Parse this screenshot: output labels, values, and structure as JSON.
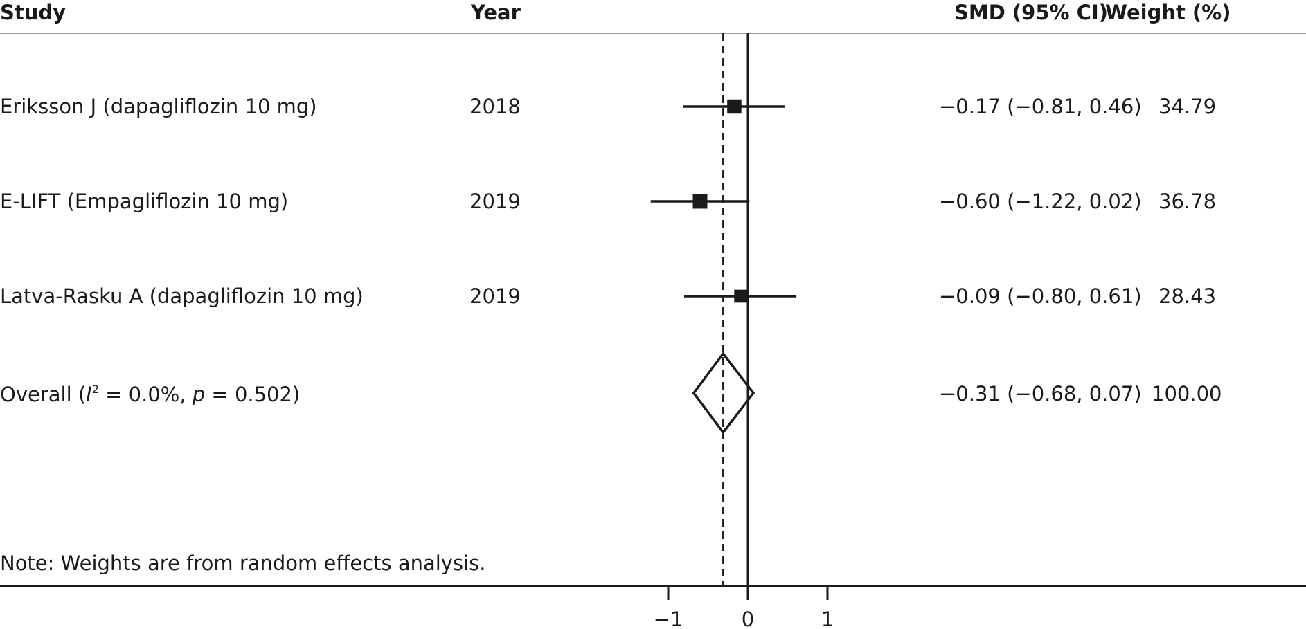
{
  "header": {
    "study": "Study",
    "year": "Year",
    "smd": "SMD (95% CI)",
    "weight": "Weight (%)"
  },
  "rows": [
    {
      "study": "Eriksson J (dapagliflozin 10 mg)",
      "year": "2018",
      "smd_text": "−0.17 (−0.81, 0.46)",
      "weight": "34.79"
    },
    {
      "study": "E-LIFT (Empagliflozin 10 mg)",
      "year": "2019",
      "smd_text": "−0.60 (−1.22, 0.02)",
      "weight": "36.78"
    },
    {
      "study": "Latva-Rasku A (dapagliflozin 10 mg)",
      "year": "2019",
      "smd_text": "−0.09 (−0.80, 0.61)",
      "weight": "28.43"
    }
  ],
  "overall": {
    "label_prefix": "Overall (",
    "i_letter": "I",
    "i_sup": "2",
    "i2_text": " = 0.0%, ",
    "p_letter": "p",
    "p_text": " = 0.502)",
    "smd_text": "−0.31 (−0.68, 0.07)",
    "weight": "100.00"
  },
  "note": "Note: Weights are from random effects analysis.",
  "chart_data": {
    "type": "forest",
    "studies": [
      "Eriksson J (dapagliflozin 10 mg)",
      "E-LIFT (Empagliflozin 10 mg)",
      "Latva-Rasku A (dapagliflozin 10 mg)"
    ],
    "estimates": [
      -0.17,
      -0.6,
      -0.09
    ],
    "ci_lower": [
      -0.81,
      -1.22,
      -0.8
    ],
    "ci_upper": [
      0.46,
      0.02,
      0.61
    ],
    "weights": [
      34.79,
      36.78,
      28.43
    ],
    "overall": {
      "estimate": -0.31,
      "ci_lower": -0.68,
      "ci_upper": 0.07
    },
    "null_line": 0,
    "x_ticks": [
      -1,
      0,
      1
    ],
    "x_tick_labels": [
      "−1",
      "0",
      "1"
    ],
    "colors": {
      "ink": "#1a1a1a",
      "rule": "#9a9a9a"
    }
  }
}
